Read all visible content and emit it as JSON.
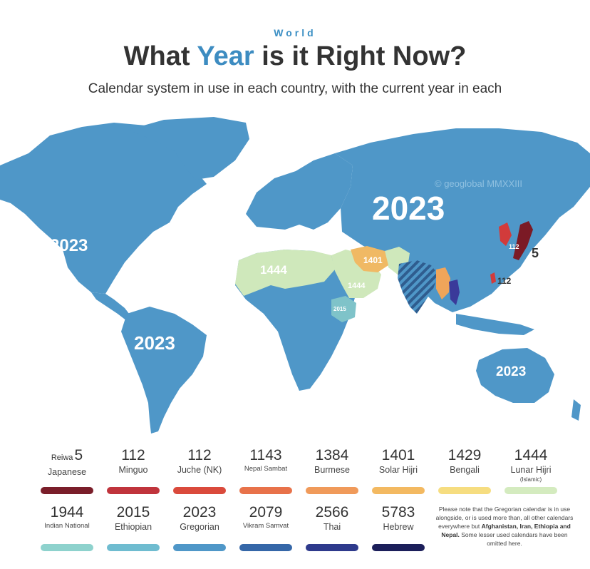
{
  "header": {
    "kicker": "World",
    "title_part1": "What ",
    "title_highlight": "Year",
    "title_part2": " is it Right Now?",
    "subtitle": "Calendar system in use in each country, with the current year in each"
  },
  "map": {
    "watermark": "© geoglobal MMXXIII",
    "labels": {
      "north_america": "2023",
      "south_america": "2023",
      "asia": "2023",
      "oceania": "2023",
      "north_africa": "1444",
      "arabia": "1444",
      "iran": "1401",
      "ethiopia": "2015",
      "korea": "112",
      "japan": "5",
      "taiwan": "112"
    },
    "colors": {
      "ocean": "#ffffff",
      "gregorian": "#4f97c8",
      "islamic": "#cfe8bb",
      "solar_hijri": "#f0b964",
      "ethiopian": "#7fc3c9",
      "japanese": "#7b1a25",
      "juche": "#d23b3b",
      "thai": "#3a3a9a",
      "burmese": "#f0a55a"
    }
  },
  "legend": {
    "row1": [
      {
        "prefix": "Reiwa",
        "year": "5",
        "name": "Japanese",
        "color": "#7a1e2a"
      },
      {
        "prefix": "",
        "year": "112",
        "name": "Minguo",
        "color": "#c0343c"
      },
      {
        "prefix": "",
        "year": "112",
        "name": "Juche (NK)",
        "color": "#da4a3c"
      },
      {
        "prefix": "",
        "year": "1143",
        "name": "Nepal Sambat",
        "color": "#e8724a",
        "small": true
      },
      {
        "prefix": "",
        "year": "1384",
        "name": "Burmese",
        "color": "#f09a5a"
      },
      {
        "prefix": "",
        "year": "1401",
        "name": "Solar Hijri",
        "color": "#f3b961"
      },
      {
        "prefix": "",
        "year": "1429",
        "name": "Bengali",
        "color": "#f6dd80"
      },
      {
        "prefix": "",
        "year": "1444",
        "name": "Lunar Hijri",
        "note": "(Islamic)",
        "color": "#d4ebbf"
      }
    ],
    "row2": [
      {
        "prefix": "",
        "year": "1944",
        "name": "Indian National",
        "color": "#8ed2cd",
        "small": true
      },
      {
        "prefix": "",
        "year": "2015",
        "name": "Ethiopian",
        "color": "#6fbcd0"
      },
      {
        "prefix": "",
        "year": "2023",
        "name": "Gregorian",
        "color": "#4f97c8"
      },
      {
        "prefix": "",
        "year": "2079",
        "name": "Vikram Samvat",
        "color": "#3567a8",
        "small": true
      },
      {
        "prefix": "",
        "year": "2566",
        "name": "Thai",
        "color": "#2e3a8c"
      },
      {
        "prefix": "",
        "year": "5783",
        "name": "Hebrew",
        "color": "#1c1f5a"
      }
    ],
    "note_part1": "Please note that the Gregorian calendar is in use alongside, or is used more than, all other calendars everywhere but ",
    "note_bold": "Afghanistan, Iran, Ethiopia and Nepal.",
    "note_part2": " Some lesser used calendars have been omitted here."
  }
}
